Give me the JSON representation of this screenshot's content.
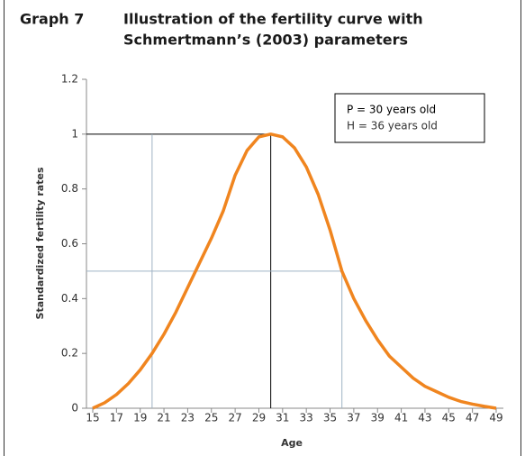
{
  "chart_data": {
    "type": "line",
    "label": "Graph 7",
    "title_lines": [
      "Illustration of the fertility curve with",
      "Schmertmann’s (2003) parameters"
    ],
    "xlabel": "Age",
    "ylabel": "Standardized fertility rates",
    "annotations": [
      "P = 30 years old",
      "H = 36 years old"
    ],
    "x": [
      15,
      16,
      17,
      18,
      19,
      20,
      21,
      22,
      23,
      24,
      25,
      26,
      27,
      28,
      29,
      30,
      31,
      32,
      33,
      34,
      35,
      36,
      37,
      38,
      39,
      40,
      41,
      42,
      43,
      44,
      45,
      46,
      47,
      48,
      49
    ],
    "series": [
      {
        "name": "Fertility curve",
        "color": "#f0851f",
        "values": [
          0,
          0.02,
          0.05,
          0.09,
          0.14,
          0.2,
          0.27,
          0.35,
          0.44,
          0.53,
          0.62,
          0.72,
          0.85,
          0.94,
          0.99,
          1,
          0.99,
          0.95,
          0.88,
          0.78,
          0.65,
          0.5,
          0.4,
          0.32,
          0.25,
          0.19,
          0.15,
          0.11,
          0.08,
          0.06,
          0.04,
          0.025,
          0.015,
          0.007,
          0
        ]
      }
    ],
    "guides": [
      {
        "x": [
          30,
          30
        ],
        "y": [
          0,
          1
        ],
        "color": "#000000"
      },
      {
        "x": [
          15,
          30
        ],
        "y": [
          1,
          1
        ],
        "color": "#000000"
      },
      {
        "x": [
          20,
          20
        ],
        "y": [
          0,
          1
        ],
        "color": "#9fb3c4"
      },
      {
        "x": [
          15,
          36
        ],
        "y": [
          0.5,
          0.5
        ],
        "color": "#9fb3c4"
      },
      {
        "x": [
          36,
          36
        ],
        "y": [
          0,
          0.5
        ],
        "color": "#9fb3c4"
      }
    ],
    "xlim": [
      15,
      49
    ],
    "xticks": [
      15,
      17,
      19,
      21,
      23,
      25,
      27,
      29,
      31,
      33,
      35,
      37,
      39,
      41,
      43,
      45,
      47,
      49
    ],
    "ylim": [
      0,
      1.2
    ],
    "yticks": [
      0,
      0.2,
      0.4,
      0.6,
      0.8,
      1,
      1.2
    ]
  }
}
